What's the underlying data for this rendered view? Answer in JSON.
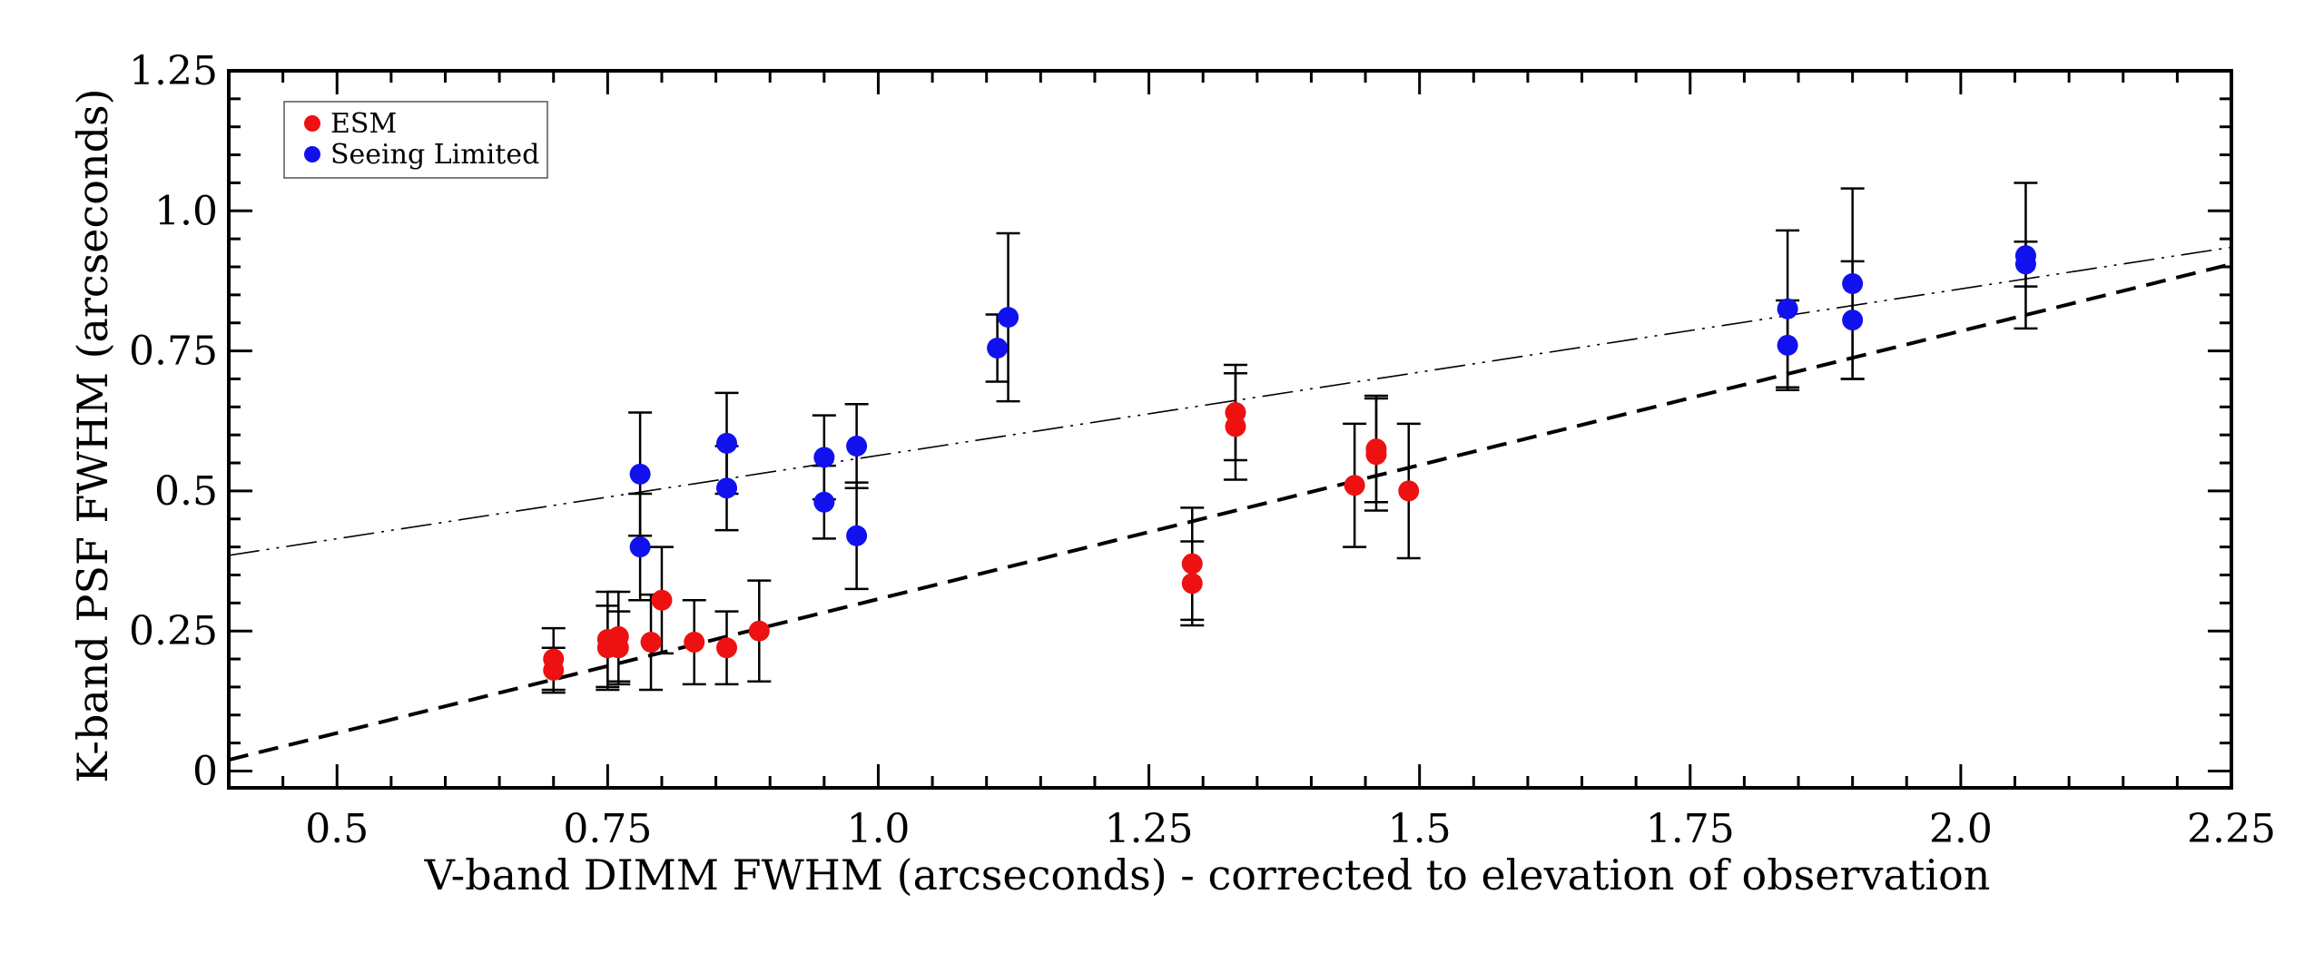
{
  "chart_data": {
    "type": "scatter",
    "title": "",
    "xlabel": "V-band DIMM FWHM (arcseconds) - corrected to elevation of observation",
    "ylabel": "K-band PSF FWHM (arcseconds)",
    "xlim": [
      0.4,
      2.25
    ],
    "ylim": [
      -0.03,
      1.25
    ],
    "x_ticks": [
      {
        "value": 0.5,
        "label": "0.5"
      },
      {
        "value": 0.75,
        "label": "0.75"
      },
      {
        "value": 1.0,
        "label": "1.0"
      },
      {
        "value": 1.25,
        "label": "1.25"
      },
      {
        "value": 1.5,
        "label": "1.5"
      },
      {
        "value": 1.75,
        "label": "1.75"
      },
      {
        "value": 2.0,
        "label": "2.0"
      },
      {
        "value": 2.25,
        "label": "2.25"
      }
    ],
    "y_ticks": [
      {
        "value": 0,
        "label": "0"
      },
      {
        "value": 0.25,
        "label": "0.25"
      },
      {
        "value": 0.5,
        "label": "0.5"
      },
      {
        "value": 0.75,
        "label": "0.75"
      },
      {
        "value": 1.0,
        "label": "1.0"
      },
      {
        "value": 1.25,
        "label": "1.25"
      }
    ],
    "grid": false,
    "legend_position": "top-left",
    "series": [
      {
        "name": "ESM",
        "color": "#ee1111",
        "points": [
          {
            "x": 0.7,
            "y": 0.18,
            "err": 0.04
          },
          {
            "x": 0.7,
            "y": 0.2,
            "err": 0.055
          },
          {
            "x": 0.75,
            "y": 0.22,
            "err": 0.075
          },
          {
            "x": 0.75,
            "y": 0.235,
            "err": 0.085
          },
          {
            "x": 0.76,
            "y": 0.22,
            "err": 0.065
          },
          {
            "x": 0.76,
            "y": 0.24,
            "err": 0.08
          },
          {
            "x": 0.79,
            "y": 0.23,
            "err": 0.085
          },
          {
            "x": 0.8,
            "y": 0.305,
            "err": 0.095
          },
          {
            "x": 0.83,
            "y": 0.23,
            "err": 0.075
          },
          {
            "x": 0.86,
            "y": 0.22,
            "err": 0.065
          },
          {
            "x": 0.89,
            "y": 0.25,
            "err": 0.09
          },
          {
            "x": 1.29,
            "y": 0.335,
            "err": 0.075
          },
          {
            "x": 1.29,
            "y": 0.37,
            "err": 0.1
          },
          {
            "x": 1.33,
            "y": 0.615,
            "err": 0.095
          },
          {
            "x": 1.33,
            "y": 0.64,
            "err": 0.085
          },
          {
            "x": 1.44,
            "y": 0.51,
            "err": 0.11
          },
          {
            "x": 1.46,
            "y": 0.565,
            "err": 0.1
          },
          {
            "x": 1.46,
            "y": 0.575,
            "err": 0.095
          },
          {
            "x": 1.49,
            "y": 0.5,
            "err": 0.12
          }
        ]
      },
      {
        "name": "Seeing Limited",
        "color": "#1111ee",
        "points": [
          {
            "x": 0.78,
            "y": 0.53,
            "err": 0.11
          },
          {
            "x": 0.78,
            "y": 0.4,
            "err": 0.095
          },
          {
            "x": 0.86,
            "y": 0.585,
            "err": 0.09
          },
          {
            "x": 0.86,
            "y": 0.505,
            "err": 0.075
          },
          {
            "x": 0.95,
            "y": 0.56,
            "err": 0.075
          },
          {
            "x": 0.95,
            "y": 0.48,
            "err": 0.065
          },
          {
            "x": 0.98,
            "y": 0.58,
            "err": 0.075
          },
          {
            "x": 0.98,
            "y": 0.42,
            "err": 0.095
          },
          {
            "x": 1.11,
            "y": 0.755,
            "err": 0.06
          },
          {
            "x": 1.12,
            "y": 0.81,
            "err": 0.15
          },
          {
            "x": 1.84,
            "y": 0.825,
            "err": 0.14
          },
          {
            "x": 1.84,
            "y": 0.76,
            "err": 0.08
          },
          {
            "x": 1.9,
            "y": 0.87,
            "err": 0.17
          },
          {
            "x": 1.9,
            "y": 0.805,
            "err": 0.105
          },
          {
            "x": 2.06,
            "y": 0.92,
            "err": 0.13
          },
          {
            "x": 2.06,
            "y": 0.905,
            "err": 0.04
          }
        ]
      }
    ],
    "reference_lines": [
      {
        "style": "dashed",
        "color": "#000000",
        "x": [
          0.4,
          2.25
        ],
        "y": [
          0.02,
          0.905
        ]
      },
      {
        "style": "dash-dot-dot",
        "color": "#000000",
        "x": [
          0.4,
          2.25
        ],
        "y": [
          0.385,
          0.935
        ]
      }
    ]
  }
}
